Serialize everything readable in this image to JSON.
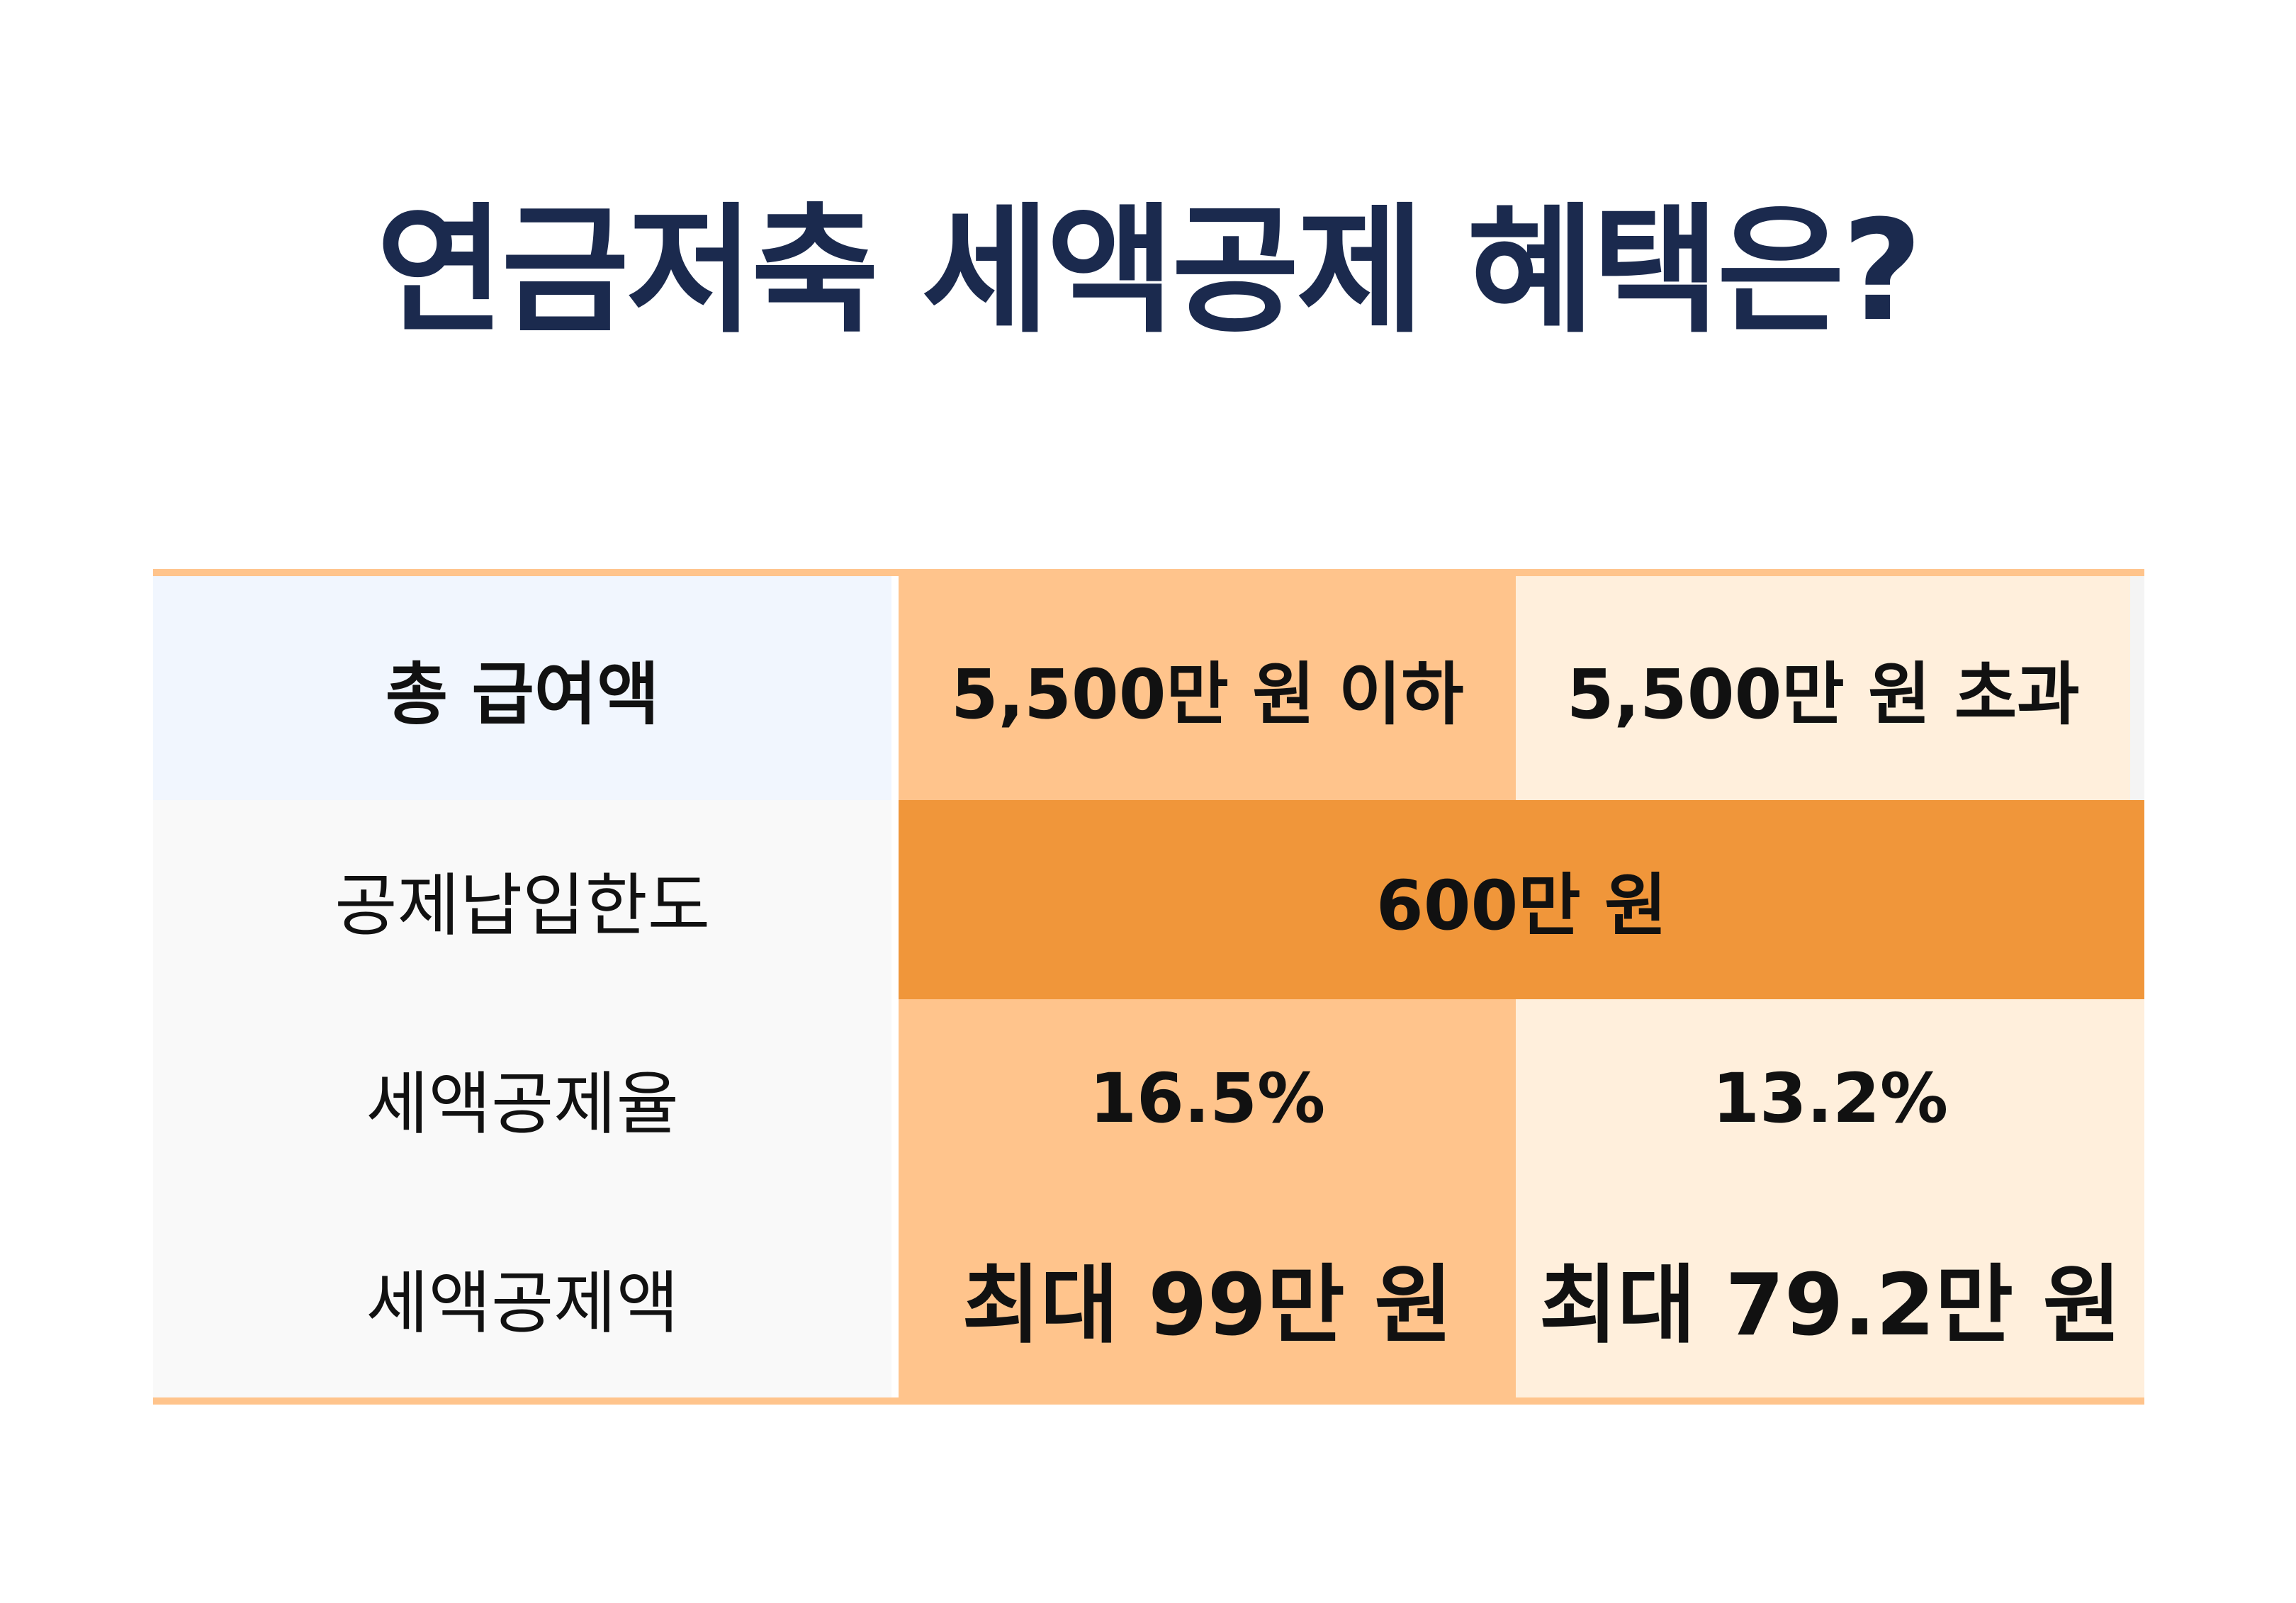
{
  "title": "연금저축 세액공제 혜택은?",
  "table": {
    "header": {
      "label": "총 급여액",
      "col1": "5,500만 원 이하",
      "col2": "5,500만 원 초과"
    },
    "rows": [
      {
        "label": "공제납입한도",
        "merged": "600만 원"
      },
      {
        "label": "세액공제율",
        "col1": "16.5%",
        "col2": "13.2%"
      },
      {
        "label": "세액공제액",
        "col1": "최대 99만 원",
        "col2": "최대 79.2만 원"
      }
    ]
  },
  "colors": {
    "title": "#1b2a4e",
    "rule": "#ffc48c",
    "col1_bg": "#ffc48c",
    "col2_bg": "#ffefdc",
    "merged_bg": "#f0963a",
    "label_bg": "#f9f9f9",
    "header_label_bg": "#f1f6fe"
  }
}
